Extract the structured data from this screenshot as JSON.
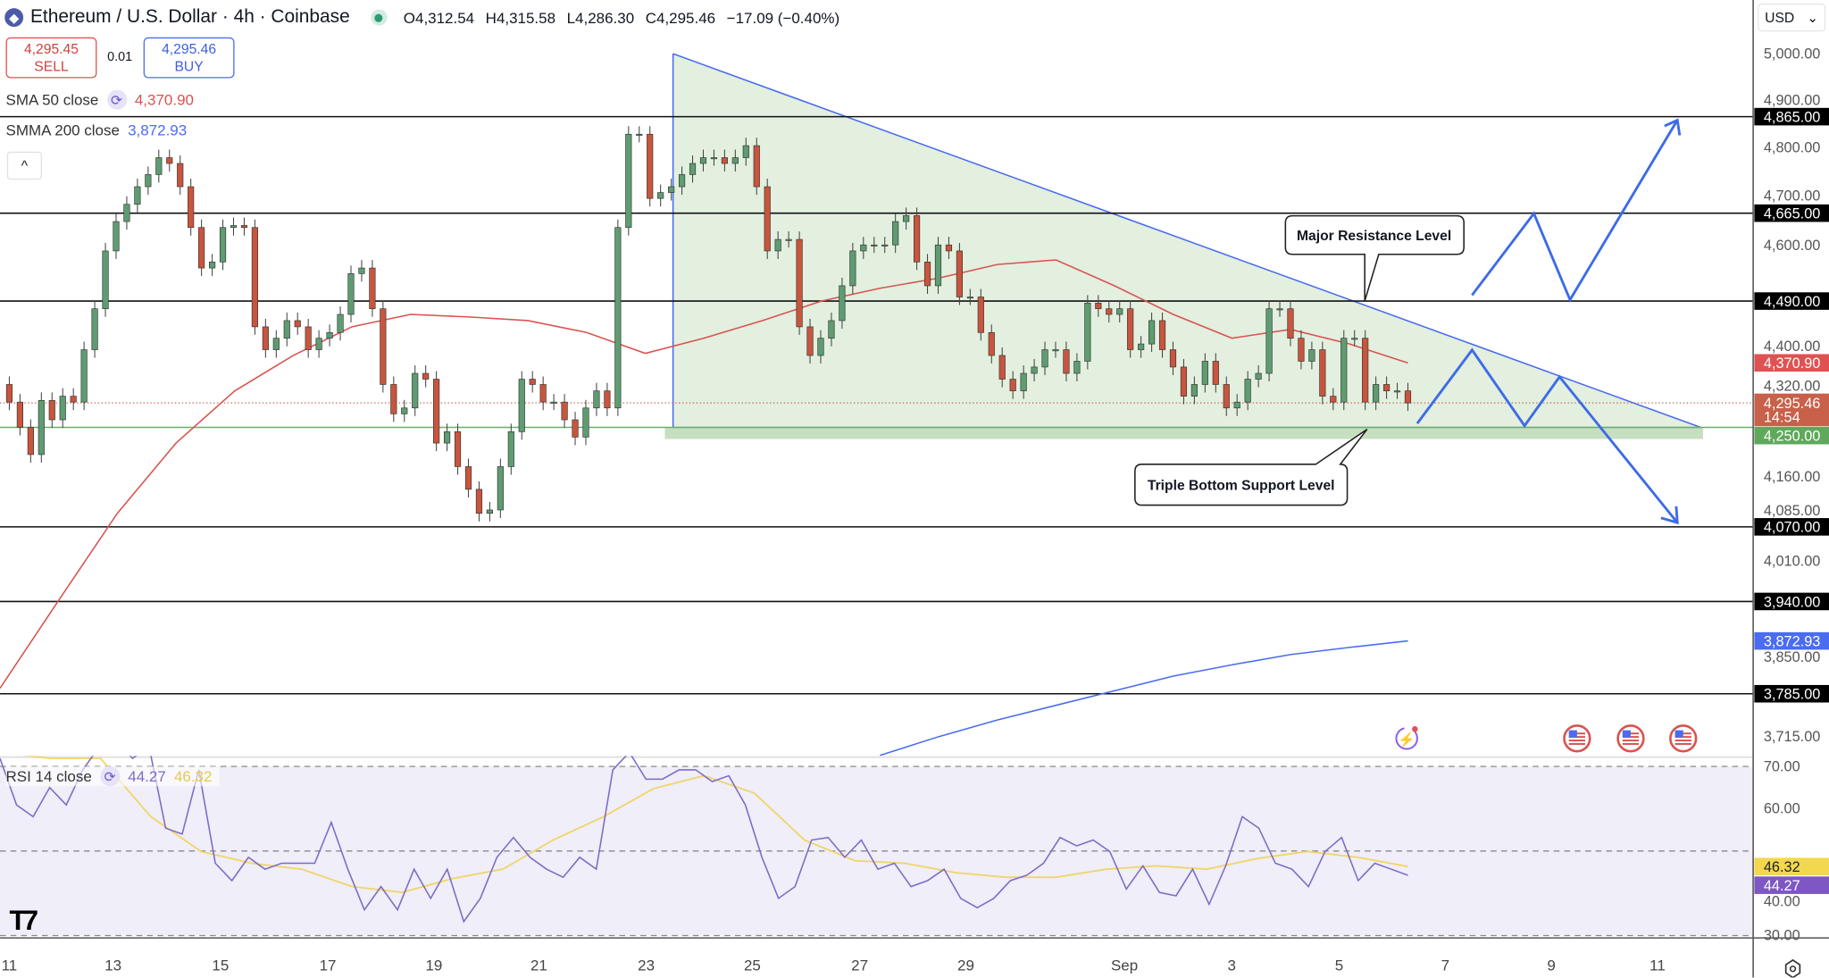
{
  "header": {
    "title": "Ethereum / U.S. Dollar · 4h · Coinbase",
    "symbol_icon": "ethereum-icon",
    "ohlc": [
      {
        "k": "O",
        "v": "4,312.54"
      },
      {
        "k": "H",
        "v": "4,315.58"
      },
      {
        "k": "L",
        "v": "4,286.30"
      },
      {
        "k": "C",
        "v": "4,295.46"
      }
    ],
    "change": "−17.09 (−0.40%)"
  },
  "trade": {
    "sell_price": "4,295.45",
    "sell_label": "SELL",
    "spread": "0.01",
    "buy_price": "4,295.46",
    "buy_label": "BUY"
  },
  "indicators": {
    "sma_label": "SMA 50 close",
    "sma_value": "4,370.90",
    "smma_label": "SMMA 200 close",
    "smma_value": "3,872.93",
    "rsi_label": "RSI 14 close",
    "rsi_value": "44.27",
    "rsi_ma_value": "46.32",
    "collapse_icon": "^"
  },
  "currency": {
    "selected": "USD",
    "chevron": "⌄"
  },
  "colors": {
    "up": "#5e9c72",
    "down": "#c8553d",
    "sma": "#d9534f",
    "smma": "#4a6cf0",
    "rsi": "#7e6bc4",
    "rsi_ma": "#f0d56a",
    "support": "#6ab06a",
    "triangle_fill": "#e3efdf",
    "projection": "#3d6be8"
  },
  "chart_data": [
    {
      "type": "candlestick",
      "title": "Ethereum / U.S. Dollar · 4h · Coinbase",
      "scale": "log",
      "x_tick_labels": [
        "11",
        "13",
        "15",
        "17",
        "19",
        "21",
        "23",
        "25",
        "27",
        "29",
        "Sep",
        "3",
        "5",
        "7",
        "9",
        "11"
      ],
      "y_tick_labels": [
        "5,000.00",
        "4,900.00",
        "4,800.00",
        "4,700.00",
        "4,600.00",
        "4,400.00",
        "4,320.00",
        "4,160.00",
        "4,085.00",
        "4,010.00",
        "3,850.00",
        "3,715.00"
      ],
      "y_ticks": [
        5000,
        4900,
        4800,
        4700,
        4600,
        4400,
        4320,
        4160,
        4085,
        4010,
        3850,
        3715
      ],
      "first_open": 4330,
      "close": [
        4297,
        4250,
        4200,
        4300,
        4264,
        4308,
        4297,
        4396,
        4475,
        4589,
        4648,
        4683,
        4719,
        4744,
        4779,
        4767,
        4719,
        4636,
        4555,
        4567,
        4636,
        4640,
        4636,
        4440,
        4396,
        4418,
        4452,
        4440,
        4396,
        4418,
        4429,
        4464,
        4544,
        4555,
        4475,
        4330,
        4275,
        4286,
        4351,
        4340,
        4221,
        4242,
        4178,
        4137,
        4094,
        4100,
        4178,
        4242,
        4340,
        4330,
        4297,
        4297,
        4264,
        4232,
        4286,
        4318,
        4286,
        4636,
        4828,
        4828,
        4695,
        4707,
        4719,
        4744,
        4767,
        4779,
        4779,
        4767,
        4779,
        4804,
        4719,
        4589,
        4612,
        4612,
        4440,
        4385,
        4418,
        4452,
        4520,
        4589,
        4601,
        4601,
        4601,
        4648,
        4660,
        4567,
        4520,
        4601,
        4589,
        4498,
        4498,
        4429,
        4385,
        4340,
        4318,
        4351,
        4363,
        4396,
        4396,
        4351,
        4374,
        4486,
        4475,
        4464,
        4475,
        4396,
        4407,
        4452,
        4396,
        4363,
        4308,
        4330,
        4374,
        4330,
        4286,
        4297,
        4340,
        4351,
        4475,
        4475,
        4418,
        4374,
        4396,
        4308,
        4297,
        4418,
        4418,
        4297,
        4330,
        4318,
        4318,
        4295.46
      ],
      "sma50": {
        "name": "SMA 50 close",
        "values": [
          3794,
          3942,
          4094,
          4221,
          4318,
          4385,
          4440,
          4464,
          4459,
          4452,
          4429,
          4389,
          4418,
          4452,
          4490,
          4515,
          4535,
          4562,
          4571,
          4520,
          4464,
          4418,
          4435,
          4407,
          4370.9
        ]
      },
      "smma200": {
        "name": "SMMA 200 close",
        "values": [
          null,
          null,
          null,
          null,
          null,
          null,
          null,
          null,
          null,
          null,
          null,
          null,
          null,
          null,
          null,
          3685,
          3715,
          3742,
          3766,
          3790,
          3814,
          3833,
          3850,
          3862,
          3872.93
        ]
      },
      "levels": [
        {
          "price": 4865,
          "label": "4,865.00",
          "kind": "resistance"
        },
        {
          "price": 4665,
          "label": "4,665.00",
          "kind": "resistance"
        },
        {
          "price": 4490,
          "label": "4,490.00",
          "kind": "resistance"
        },
        {
          "price": 4250,
          "label": "4,250.00",
          "kind": "support"
        },
        {
          "price": 4070,
          "label": "4,070.00",
          "kind": "support"
        },
        {
          "price": 3940,
          "label": "3,940.00",
          "kind": "support"
        },
        {
          "price": 3785,
          "label": "3,785.00",
          "kind": "support"
        }
      ],
      "last_price": {
        "label": "4,295.46",
        "countdown": "14:54"
      },
      "sma_badge": "4,370.90",
      "smma_badge": "3,872.93",
      "annotations": {
        "resistance_callout": "Major Resistance Level",
        "support_callout": "Triple Bottom Support Level"
      }
    },
    {
      "type": "line",
      "title": "RSI 14 close",
      "y_tick_labels": [
        "70.00",
        "60.00",
        "40.00",
        "30.00"
      ],
      "y_ticks": [
        70,
        60,
        40,
        30
      ],
      "bands": [
        70,
        50,
        30
      ],
      "series": [
        {
          "name": "RSI 14",
          "values": [
            71.9,
            60.9,
            58.1,
            65.0,
            60.9,
            69.2,
            74.7,
            76.1,
            71.9,
            74.7,
            55.4,
            54.0,
            69.2,
            47.1,
            43.0,
            48.5,
            45.7,
            47.1,
            47.1,
            47.1,
            56.8,
            45.7,
            36.1,
            41.6,
            36.1,
            45.7,
            38.8,
            45.7,
            33.3,
            38.8,
            48.5,
            53.2,
            48.5,
            45.7,
            43.8,
            48.5,
            45.7,
            69.2,
            73.3,
            67.0,
            67.0,
            69.2,
            69.2,
            66.4,
            67.8,
            60.9,
            48.5,
            38.8,
            41.6,
            52.6,
            53.2,
            48.5,
            52.6,
            45.7,
            47.1,
            41.6,
            43.0,
            45.7,
            38.8,
            36.6,
            38.8,
            43.0,
            44.3,
            47.1,
            53.2,
            51.2,
            52.6,
            49.9,
            41.0,
            46.5,
            40.2,
            39.4,
            45.7,
            37.4,
            46.5,
            58.1,
            55.4,
            47.1,
            45.7,
            41.6,
            49.9,
            53.2,
            43.0,
            47.1,
            45.7,
            44.27
          ]
        },
        {
          "name": "RSI MA",
          "values": [
            73.3,
            71.9,
            71.9,
            58.1,
            49.9,
            47.1,
            45.7,
            41.6,
            40.2,
            43.5,
            45.7,
            52.6,
            58.1,
            64.8,
            67.8,
            63.7,
            52.6,
            47.7,
            47.1,
            44.9,
            43.8,
            43.8,
            45.7,
            46.5,
            45.7,
            48.2,
            49.9,
            48.5,
            46.32
          ]
        }
      ],
      "badges": {
        "rsi": "44.27",
        "rsi_ma": "46.32"
      }
    }
  ],
  "event_icons": [
    "lightning-event-icon",
    "us-flag-icon",
    "us-flag-icon",
    "us-flag-icon"
  ],
  "settings_icon": "settings-icon",
  "logo": "TV"
}
